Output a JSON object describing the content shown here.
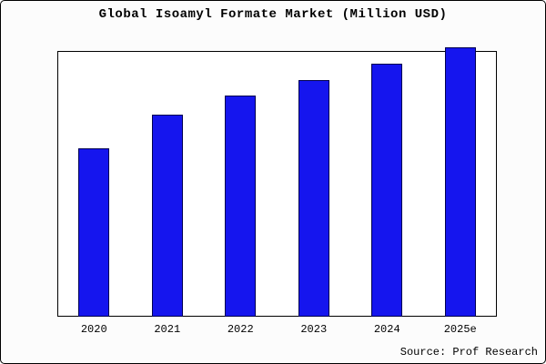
{
  "source": "Source: Prof Research",
  "colors": {
    "bar_fill": "#1515ee",
    "bar_border": "#000050",
    "frame_border": "#000000",
    "plot_background": "#ffffff"
  },
  "chart_data": {
    "type": "bar",
    "categories": [
      "2020",
      "2021",
      "2022",
      "2023",
      "2024",
      "2025e"
    ],
    "values": [
      62.5,
      75,
      82,
      88,
      94,
      100
    ],
    "title": "Global Isoamyl Formate Market (Million USD)",
    "xlabel": "",
    "ylabel": "",
    "ylim": [
      0,
      100
    ],
    "grid": false,
    "legend": false,
    "value_labels_shown": false,
    "y_axis_labels_shown": false
  }
}
